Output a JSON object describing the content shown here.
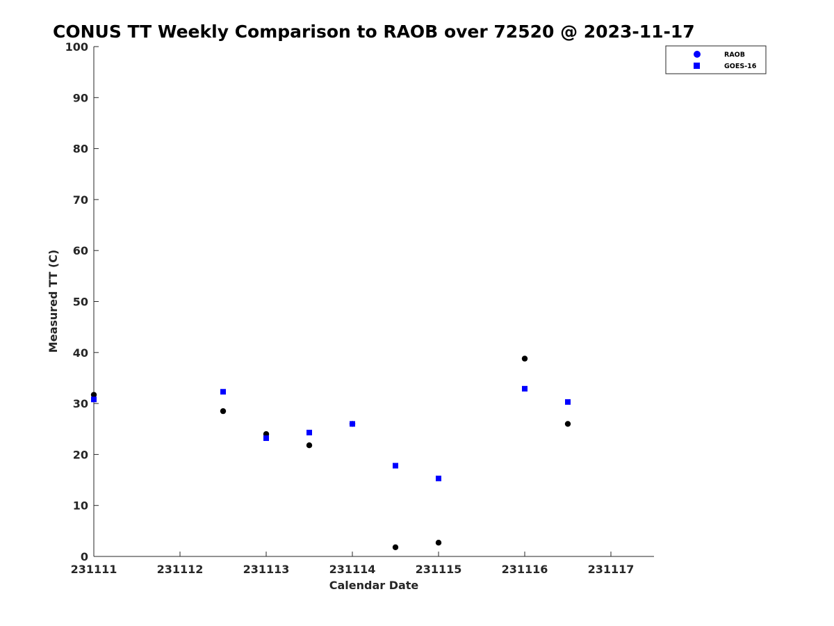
{
  "colors": {
    "raob": "#000000",
    "goes": "#0000ff",
    "axis": "#262626",
    "legend_marker": "#0000ff"
  },
  "chart_data": {
    "type": "scatter",
    "title": "CONUS TT Weekly Comparison to RAOB over 72520 @ 2023-11-17",
    "xlabel": "Calendar Date",
    "ylabel": "Measured TT (C)",
    "xlim": [
      0,
      6.5
    ],
    "ylim": [
      0,
      100
    ],
    "x_ticks": [
      0,
      1,
      2,
      3,
      4,
      5,
      6
    ],
    "x_tick_labels": [
      "231111",
      "231112",
      "231113",
      "231114",
      "231115",
      "231116",
      "231117"
    ],
    "y_ticks": [
      0,
      10,
      20,
      30,
      40,
      50,
      60,
      70,
      80,
      90,
      100
    ],
    "y_tick_labels": [
      "0",
      "10",
      "20",
      "30",
      "40",
      "50",
      "60",
      "70",
      "80",
      "90",
      "100"
    ],
    "grid": false,
    "legend_position": "top-right",
    "series": [
      {
        "name": "RAOB",
        "marker": "circle",
        "x": [
          0,
          1.5,
          2,
          2.5,
          3,
          3.5,
          4,
          5,
          5.5
        ],
        "y": [
          31.7,
          28.5,
          24.0,
          21.8,
          26.0,
          1.8,
          2.7,
          38.8,
          26.0
        ]
      },
      {
        "name": "GOES-16",
        "marker": "square",
        "x": [
          0,
          1.5,
          2,
          2.5,
          3,
          3.5,
          4,
          5,
          5.5
        ],
        "y": [
          30.8,
          32.3,
          23.2,
          24.3,
          26.0,
          17.8,
          15.3,
          32.9,
          30.3
        ]
      }
    ]
  }
}
